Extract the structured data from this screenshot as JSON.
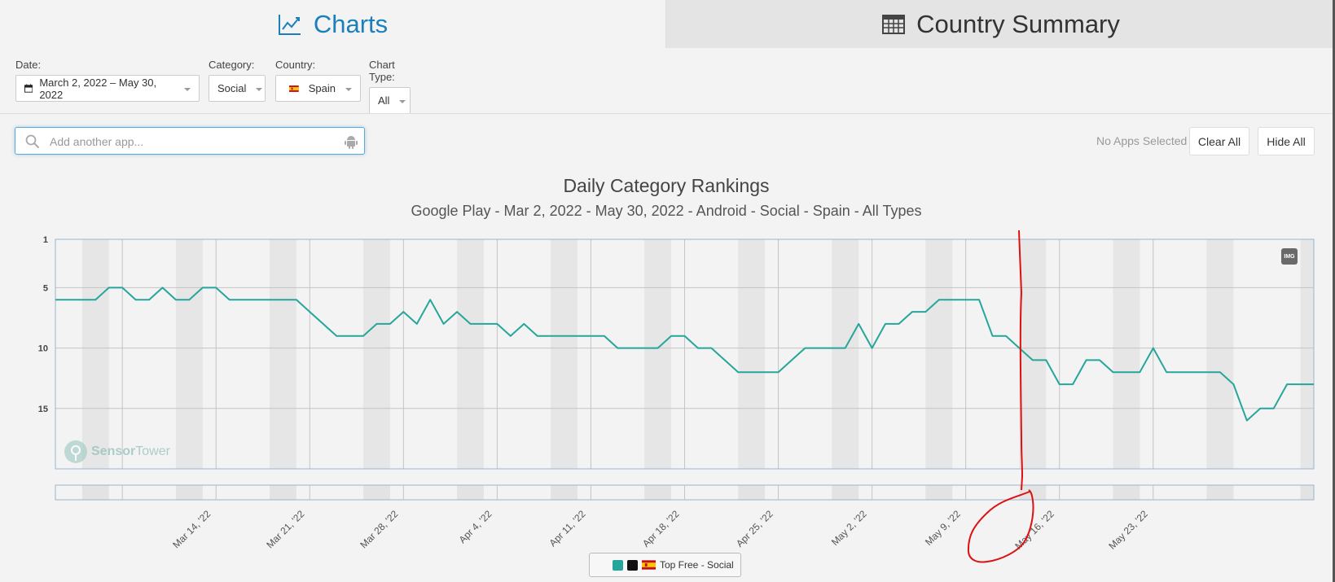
{
  "tabs": {
    "charts_label": "Charts",
    "country_summary_label": "Country Summary"
  },
  "filters": {
    "date_label": "Date:",
    "date_value": "March 2, 2022 – May 30, 2022",
    "category_label": "Category:",
    "category_value": "Social",
    "country_label": "Country:",
    "country_value": "Spain",
    "chart_type_label": "Chart Type:",
    "chart_type_value": "All"
  },
  "search": {
    "placeholder": "Add another app..."
  },
  "selection": {
    "status": "No Apps Selected",
    "clear_all_label": "Clear All",
    "hide_all_label": "Hide All"
  },
  "watermark": {
    "brand_bold": "Sensor",
    "brand_light": "Tower"
  },
  "img_button_label": "IMG",
  "legend": {
    "label": "Top Free - Social"
  },
  "colors": {
    "accent": "#1a7fba",
    "series": "#26a69a"
  },
  "chart_data": {
    "type": "line",
    "title": "Daily Category Rankings",
    "subtitle": "Google Play - Mar 2, 2022 - May 30, 2022 - Android - Social - Spain - All Types",
    "y_ticks": [
      "1",
      "5",
      "10",
      "15"
    ],
    "y_inverted": true,
    "ylim": [
      1,
      20
    ],
    "x_tick_labels": [
      "Mar 14, '22",
      "Mar 21, '22",
      "Mar 28, '22",
      "Apr 4, '22",
      "Apr 11, '22",
      "Apr 18, '22",
      "Apr 25, '22",
      "May 2, '22",
      "May 9, '22",
      "May 16, '22",
      "May 23, '22"
    ],
    "series": [
      {
        "name": "Top Free - Social",
        "values": [
          6,
          6,
          6,
          6,
          5,
          5,
          6,
          6,
          5,
          6,
          6,
          5,
          5,
          6,
          6,
          6,
          6,
          6,
          6,
          7,
          8,
          9,
          9,
          9,
          8,
          8,
          7,
          8,
          6,
          8,
          7,
          8,
          8,
          8,
          9,
          8,
          9,
          9,
          9,
          9,
          9,
          9,
          10,
          10,
          10,
          10,
          9,
          9,
          10,
          10,
          11,
          12,
          12,
          12,
          12,
          11,
          10,
          10,
          10,
          10,
          8,
          10,
          8,
          8,
          7,
          7,
          6,
          6,
          6,
          6,
          9,
          9,
          10,
          11,
          11,
          13,
          13,
          11,
          11,
          12,
          12,
          12,
          10,
          12,
          12,
          12,
          12,
          12,
          13,
          16,
          15,
          15,
          13,
          13,
          13
        ]
      }
    ]
  }
}
